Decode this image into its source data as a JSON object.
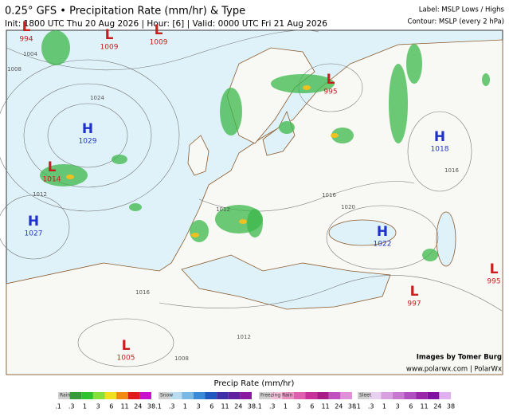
{
  "header": {
    "title": "0.25° GFS • Precipitation Rate (mm/hr) & Type",
    "init_line": "Init: 1800 UTC Thu 20 Aug 2026 | Hour: [6] | Valid: 0000 UTC Fri 21 Aug 2026",
    "label_line": "Label: MSLP Lows / Highs",
    "contour_line": "Contour: MSLP (every 2 hPa)"
  },
  "pressure_centers": [
    {
      "type": "L",
      "value": "994"
    },
    {
      "type": "L",
      "value": "1009"
    },
    {
      "type": "L",
      "value": "1009"
    },
    {
      "type": "H",
      "value": "1029"
    },
    {
      "type": "L",
      "value": "1014"
    },
    {
      "type": "H",
      "value": "1027"
    },
    {
      "type": "L",
      "value": "995"
    },
    {
      "type": "H",
      "value": "1018"
    },
    {
      "type": "H",
      "value": "1022"
    },
    {
      "type": "L",
      "value": "997"
    },
    {
      "type": "L",
      "value": "995"
    },
    {
      "type": "L",
      "value": "1005"
    }
  ],
  "isobar_labels": [
    "1004",
    "1008",
    "1024",
    "1016",
    "1012",
    "1020",
    "1016",
    "1016",
    "1012",
    "1008",
    "1012"
  ],
  "credits": [
    "Images by Tomer Burg",
    "www.polarwx.com | PolarWx"
  ],
  "legend": {
    "title": "Precip Rate (mm/hr)",
    "groups": [
      {
        "label": "Rain",
        "ticks": [
          ".1",
          ".3",
          "1",
          "3",
          "6",
          "11",
          "24",
          "38"
        ]
      },
      {
        "label": "Snow",
        "ticks": [
          ".1",
          ".3",
          "1",
          "3",
          "6",
          "11",
          "24",
          "38"
        ]
      },
      {
        "label": "Freezing Rain",
        "ticks": [
          ".1",
          ".3",
          "1",
          "3",
          "6",
          "11",
          "24",
          "38"
        ]
      },
      {
        "label": "Sleet",
        "ticks": [
          ".1",
          ".3",
          "1",
          "3",
          "6",
          "11",
          "24",
          "38"
        ]
      }
    ]
  }
}
